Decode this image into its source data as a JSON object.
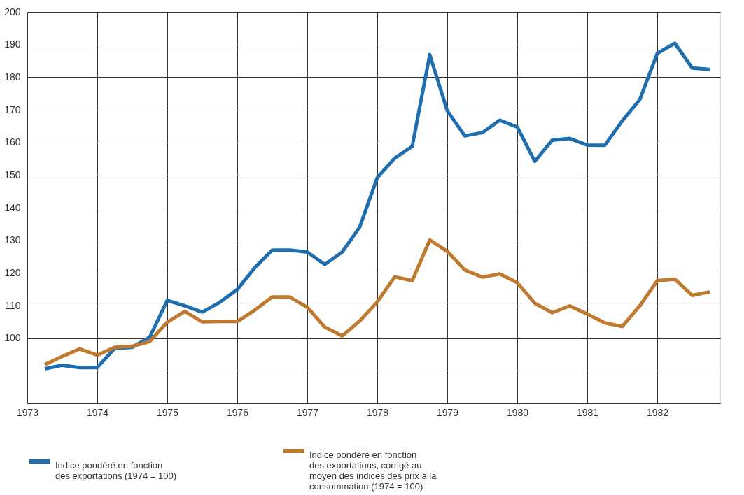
{
  "chart_data": {
    "type": "line",
    "x": [
      1973.25,
      1973.5,
      1973.75,
      1974.0,
      1974.25,
      1974.5,
      1974.75,
      1975.0,
      1975.25,
      1975.5,
      1975.75,
      1976.0,
      1976.25,
      1976.5,
      1976.75,
      1977.0,
      1977.25,
      1977.5,
      1977.75,
      1978.0,
      1978.25,
      1978.5,
      1978.75,
      1979.0,
      1979.25,
      1979.5,
      1979.75,
      1980.0,
      1980.25,
      1980.5,
      1980.75,
      1981.0,
      1981.25,
      1981.5,
      1981.75,
      1982.0,
      1982.25,
      1982.5,
      1982.75
    ],
    "series": [
      {
        "name": "Indice pondéré en fonction\ndes exportations (1974 = 100)",
        "color": "#1f6fb0",
        "values": [
          90.6,
          91.7,
          91.0,
          91.0,
          96.9,
          97.2,
          100.3,
          111.6,
          109.9,
          108.0,
          111.0,
          114.9,
          121.6,
          127.0,
          127.0,
          126.4,
          122.6,
          126.4,
          134.1,
          149.2,
          155.2,
          158.8,
          186.9,
          169.7,
          162.0,
          163.0,
          166.8,
          164.7,
          154.2,
          160.7,
          161.2,
          159.2,
          159.1,
          166.6,
          173.1,
          187.3,
          190.4,
          182.8,
          182.4
        ]
      },
      {
        "name": "Indice pondéré en fonction\ndes exportations, corrigé au\nmoyen des indices des prix à la\nconsommation (1974 = 100)",
        "color": "#c07a30",
        "values": [
          91.9,
          94.4,
          96.7,
          94.8,
          97.2,
          97.5,
          99.0,
          104.9,
          108.2,
          105.0,
          105.1,
          105.1,
          108.6,
          112.6,
          112.6,
          109.5,
          103.4,
          100.7,
          105.3,
          111.1,
          118.8,
          117.6,
          130.1,
          126.6,
          120.9,
          118.7,
          119.7,
          117.0,
          110.7,
          107.8,
          109.9,
          107.4,
          104.7,
          103.6,
          109.9,
          117.6,
          118.1,
          113.1,
          114.2
        ]
      }
    ],
    "xlim": [
      1973,
      1982.9
    ],
    "xticks": [
      1973,
      1974,
      1975,
      1976,
      1977,
      1978,
      1979,
      1980,
      1981,
      1982
    ],
    "ylim": [
      80,
      200
    ],
    "yticks": [
      {
        "value": 80,
        "label": null
      },
      {
        "value": 90,
        "label": null
      },
      100,
      110,
      120,
      130,
      140,
      150,
      160,
      170,
      180,
      190,
      200
    ],
    "grid": true,
    "legend": "bottom",
    "line_style": "solid",
    "marker": "none"
  }
}
